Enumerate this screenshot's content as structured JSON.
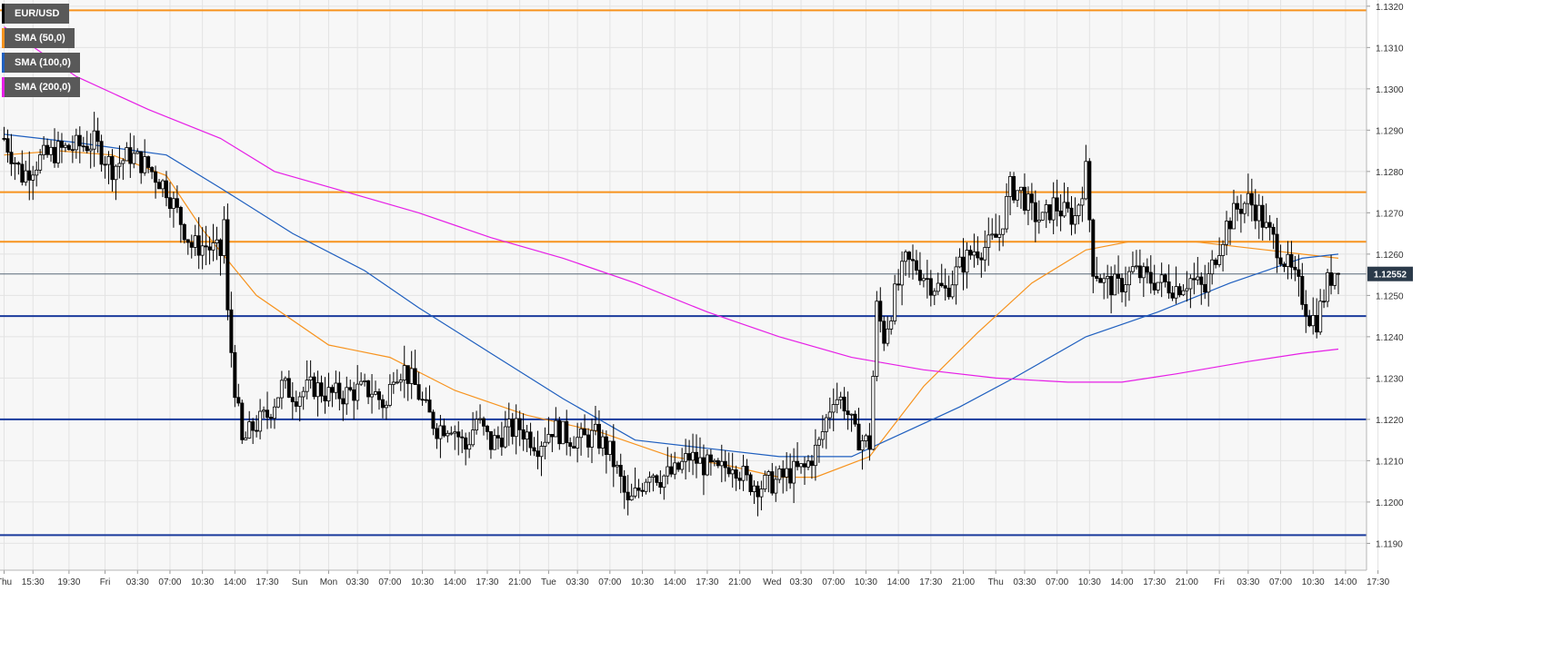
{
  "instrument": "EUR/USD",
  "current_price_label": "1.12552",
  "legend": [
    {
      "label": "EUR/USD",
      "color": "#000000"
    },
    {
      "label": "SMA (50,0)",
      "color": "#f7931e"
    },
    {
      "label": "SMA (100,0)",
      "color": "#1f5fbf"
    },
    {
      "label": "SMA (200,0)",
      "color": "#e61ee6"
    }
  ],
  "colors": {
    "background": "#f7f7f7",
    "grid": "#e3e3e3",
    "resistance": "#f7931e",
    "support": "#1a3a9c",
    "price_line": "#5a6a7a",
    "sma50": "#f7931e",
    "sma100": "#1f5fbf",
    "sma200": "#e61ee6",
    "candle_up": "#ffffff",
    "candle_down": "#000000",
    "price_tag": "#2b3a4a"
  },
  "chart_data": {
    "type": "candlestick",
    "title": "EUR/USD",
    "y_ticks": [
      "1.1190",
      "1.1200",
      "1.1210",
      "1.1220",
      "1.1230",
      "1.1240",
      "1.1250",
      "1.1260",
      "1.1270",
      "1.1280",
      "1.1290",
      "1.1300",
      "1.1310",
      "1.1320"
    ],
    "ylim": [
      1.11835,
      1.13215
    ],
    "x_tick_labels": [
      "Thu",
      "15:30",
      "19:30",
      "Fri",
      "03:30",
      "07:00",
      "10:30",
      "14:00",
      "17:30",
      "Sun",
      "Mon",
      "03:30",
      "07:00",
      "10:30",
      "14:00",
      "17:30",
      "21:00",
      "Tue",
      "03:30",
      "07:00",
      "10:30",
      "14:00",
      "17:30",
      "21:00",
      "Wed",
      "03:30",
      "07:00",
      "10:30",
      "14:00",
      "17:30",
      "21:00",
      "Thu",
      "03:30",
      "07:00",
      "10:30",
      "14:00",
      "17:30",
      "21:00",
      "Fri",
      "03:30",
      "07:00",
      "10:30",
      "14:00",
      "17:30"
    ],
    "x_tick_index": [
      0,
      8,
      18,
      28,
      37,
      46,
      55,
      64,
      73,
      82,
      90,
      98,
      107,
      116,
      125,
      134,
      143,
      151,
      159,
      168,
      177,
      186,
      195,
      204,
      213,
      221,
      230,
      239,
      248,
      257,
      266,
      275,
      283,
      292,
      301,
      310,
      319,
      328,
      337,
      345,
      354,
      363,
      372,
      381
    ],
    "horizontal_levels": [
      {
        "value": 1.1319,
        "kind": "resistance"
      },
      {
        "value": 1.1275,
        "kind": "resistance"
      },
      {
        "value": 1.1263,
        "kind": "resistance"
      },
      {
        "value": 1.1245,
        "kind": "support"
      },
      {
        "value": 1.122,
        "kind": "support"
      },
      {
        "value": 1.1192,
        "kind": "support"
      }
    ],
    "last_price": 1.12552,
    "key_points": [
      [
        0,
        1.1288
      ],
      [
        5,
        1.1279
      ],
      [
        10,
        1.1283
      ],
      [
        15,
        1.1285
      ],
      [
        20,
        1.1286
      ],
      [
        25,
        1.1287
      ],
      [
        30,
        1.1281
      ],
      [
        35,
        1.1284
      ],
      [
        40,
        1.1281
      ],
      [
        45,
        1.1276
      ],
      [
        48,
        1.127
      ],
      [
        52,
        1.1262
      ],
      [
        56,
        1.1262
      ],
      [
        60,
        1.126
      ],
      [
        61,
        1.1268
      ],
      [
        62,
        1.1245
      ],
      [
        64,
        1.1228
      ],
      [
        66,
        1.1214
      ],
      [
        69,
        1.1218
      ],
      [
        73,
        1.1221
      ],
      [
        77,
        1.1228
      ],
      [
        81,
        1.1226
      ],
      [
        86,
        1.1228
      ],
      [
        90,
        1.1226
      ],
      [
        94,
        1.1226
      ],
      [
        98,
        1.1227
      ],
      [
        102,
        1.1227
      ],
      [
        106,
        1.1223
      ],
      [
        108,
        1.1232
      ],
      [
        111,
        1.1232
      ],
      [
        114,
        1.1228
      ],
      [
        117,
        1.1222
      ],
      [
        120,
        1.1218
      ],
      [
        124,
        1.1219
      ],
      [
        128,
        1.1213
      ],
      [
        131,
        1.122
      ],
      [
        135,
        1.1214
      ],
      [
        139,
        1.1217
      ],
      [
        143,
        1.1218
      ],
      [
        148,
        1.1214
      ],
      [
        152,
        1.1218
      ],
      [
        156,
        1.1216
      ],
      [
        160,
        1.1215
      ],
      [
        164,
        1.1216
      ],
      [
        168,
        1.1212
      ],
      [
        171,
        1.1205
      ],
      [
        173,
        1.1199
      ],
      [
        176,
        1.1203
      ],
      [
        179,
        1.1208
      ],
      [
        182,
        1.1206
      ],
      [
        186,
        1.1207
      ],
      [
        190,
        1.1211
      ],
      [
        194,
        1.1209
      ],
      [
        198,
        1.1207
      ],
      [
        202,
        1.121
      ],
      [
        206,
        1.1205
      ],
      [
        210,
        1.1204
      ],
      [
        214,
        1.1205
      ],
      [
        218,
        1.1207
      ],
      [
        222,
        1.1208
      ],
      [
        226,
        1.1214
      ],
      [
        230,
        1.1226
      ],
      [
        233,
        1.1224
      ],
      [
        236,
        1.1216
      ],
      [
        240,
        1.1214
      ],
      [
        242,
        1.1247
      ],
      [
        244,
        1.124
      ],
      [
        247,
        1.125
      ],
      [
        250,
        1.1258
      ],
      [
        253,
        1.1257
      ],
      [
        257,
        1.1253
      ],
      [
        261,
        1.1251
      ],
      [
        265,
        1.1257
      ],
      [
        269,
        1.1261
      ],
      [
        273,
        1.1262
      ],
      [
        276,
        1.1265
      ],
      [
        279,
        1.1276
      ],
      [
        282,
        1.1275
      ],
      [
        285,
        1.127
      ],
      [
        288,
        1.1268
      ],
      [
        291,
        1.1272
      ],
      [
        294,
        1.127
      ],
      [
        297,
        1.1269
      ],
      [
        300,
        1.128
      ],
      [
        302,
        1.1257
      ],
      [
        305,
        1.1253
      ],
      [
        309,
        1.1252
      ],
      [
        313,
        1.1256
      ],
      [
        317,
        1.1254
      ],
      [
        321,
        1.1253
      ],
      [
        325,
        1.1252
      ],
      [
        329,
        1.1254
      ],
      [
        333,
        1.1251
      ],
      [
        336,
        1.126
      ],
      [
        339,
        1.1267
      ],
      [
        342,
        1.1271
      ],
      [
        345,
        1.1273
      ],
      [
        348,
        1.127
      ],
      [
        350,
        1.1266
      ],
      [
        353,
        1.1262
      ],
      [
        356,
        1.1257
      ],
      [
        359,
        1.1252
      ],
      [
        362,
        1.1245
      ],
      [
        364,
        1.1244
      ],
      [
        367,
        1.1253
      ],
      [
        369,
        1.1256
      ],
      [
        370,
        1.1255
      ]
    ],
    "sma": [
      {
        "name": "SMA (50,0)",
        "color_key": "sma50",
        "points": [
          [
            0,
            1.1284
          ],
          [
            15,
            1.1285
          ],
          [
            30,
            1.1284
          ],
          [
            45,
            1.1279
          ],
          [
            55,
            1.1266
          ],
          [
            70,
            1.125
          ],
          [
            90,
            1.1238
          ],
          [
            107,
            1.1235
          ],
          [
            125,
            1.1227
          ],
          [
            145,
            1.1221
          ],
          [
            165,
            1.1217
          ],
          [
            185,
            1.1211
          ],
          [
            200,
            1.1209
          ],
          [
            215,
            1.1206
          ],
          [
            225,
            1.1206
          ],
          [
            240,
            1.1211
          ],
          [
            255,
            1.1228
          ],
          [
            270,
            1.1241
          ],
          [
            285,
            1.1253
          ],
          [
            300,
            1.1261
          ],
          [
            312,
            1.1263
          ],
          [
            330,
            1.1263
          ],
          [
            350,
            1.1261
          ],
          [
            360,
            1.126
          ],
          [
            370,
            1.1259
          ]
        ]
      },
      {
        "name": "SMA (100,0)",
        "color_key": "sma100",
        "points": [
          [
            0,
            1.1289
          ],
          [
            20,
            1.1287
          ],
          [
            45,
            1.1284
          ],
          [
            60,
            1.1276
          ],
          [
            80,
            1.1265
          ],
          [
            100,
            1.1256
          ],
          [
            115,
            1.1247
          ],
          [
            135,
            1.1236
          ],
          [
            155,
            1.1225
          ],
          [
            175,
            1.1215
          ],
          [
            195,
            1.1213
          ],
          [
            215,
            1.1211
          ],
          [
            235,
            1.1211
          ],
          [
            250,
            1.1217
          ],
          [
            265,
            1.1223
          ],
          [
            280,
            1.123
          ],
          [
            300,
            1.124
          ],
          [
            320,
            1.1246
          ],
          [
            340,
            1.1253
          ],
          [
            360,
            1.1259
          ],
          [
            370,
            1.126
          ]
        ]
      },
      {
        "name": "SMA (200,0)",
        "color_key": "sma200",
        "points": [
          [
            0,
            1.1315
          ],
          [
            20,
            1.1303
          ],
          [
            40,
            1.1295
          ],
          [
            60,
            1.1288
          ],
          [
            75,
            1.128
          ],
          [
            95,
            1.1275
          ],
          [
            115,
            1.127
          ],
          [
            135,
            1.1264
          ],
          [
            155,
            1.1259
          ],
          [
            175,
            1.1253
          ],
          [
            195,
            1.1246
          ],
          [
            215,
            1.124
          ],
          [
            235,
            1.1235
          ],
          [
            255,
            1.1232
          ],
          [
            275,
            1.123
          ],
          [
            295,
            1.1229
          ],
          [
            310,
            1.1229
          ],
          [
            325,
            1.1231
          ],
          [
            345,
            1.1234
          ],
          [
            360,
            1.1236
          ],
          [
            370,
            1.1237
          ]
        ]
      }
    ]
  }
}
